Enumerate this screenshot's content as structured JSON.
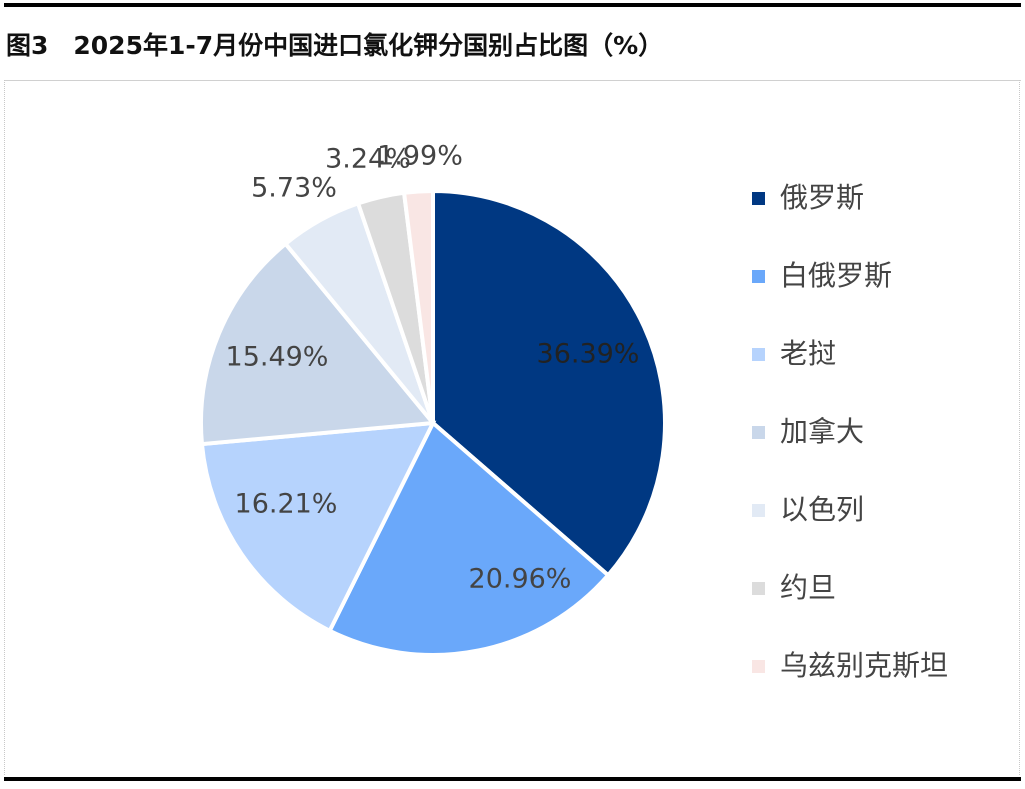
{
  "title": "图3　2025年1-7月份中国进口氯化钾分国别占比图（%）",
  "chart_data": {
    "type": "pie",
    "title": "图3　2025年1-7月份中国进口氯化钾分国别占比图（%）",
    "unit": "%",
    "slices": [
      {
        "label": "俄罗斯",
        "value": 36.39,
        "display": "36.39%",
        "color": "#003882",
        "label_color": "#222222"
      },
      {
        "label": "白俄罗斯",
        "value": 20.96,
        "display": "20.96%",
        "color": "#6aa8fa",
        "label_color": "#444444"
      },
      {
        "label": "老挝",
        "value": 16.21,
        "display": "16.21%",
        "color": "#b6d3fd",
        "label_color": "#444444"
      },
      {
        "label": "加拿大",
        "value": 15.49,
        "display": "15.49%",
        "color": "#c9d7ea",
        "label_color": "#444444"
      },
      {
        "label": "以色列",
        "value": 5.73,
        "display": "5.73%",
        "color": "#e2eaf5",
        "label_color": "#444444"
      },
      {
        "label": "约旦",
        "value": 3.24,
        "display": "3.24%",
        "color": "#dcdcdc",
        "label_color": "#444444"
      },
      {
        "label": "乌兹别克斯坦",
        "value": 1.99,
        "display": "1.99%",
        "color": "#f9e6e4",
        "label_color": "#444444"
      }
    ],
    "legend_position": "right",
    "start": "12 o'clock",
    "direction": "clockwise"
  }
}
